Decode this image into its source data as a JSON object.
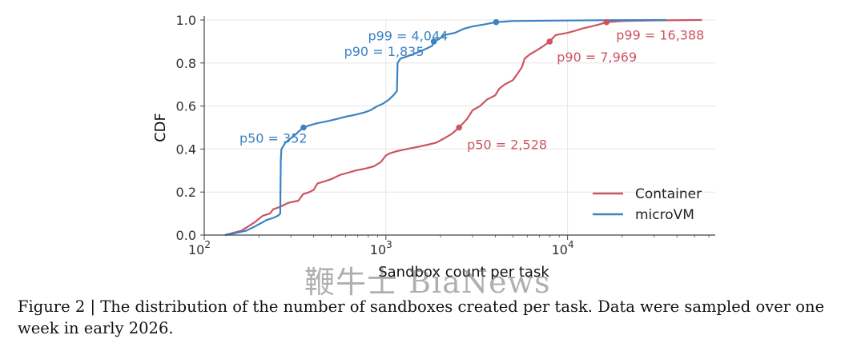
{
  "chart_data": {
    "type": "line",
    "xscale": "log",
    "xlabel": "Sandbox count per task",
    "ylabel": "CDF",
    "xlim": [
      100,
      65000
    ],
    "ylim": [
      0,
      1.0
    ],
    "xticks": [
      {
        "value": 100,
        "base": "10",
        "exp": "2"
      },
      {
        "value": 1000,
        "base": "10",
        "exp": "3"
      },
      {
        "value": 10000,
        "base": "10",
        "exp": "4"
      }
    ],
    "yticks": [
      "0.0",
      "0.2",
      "0.4",
      "0.6",
      "0.8",
      "1.0"
    ],
    "grid": true,
    "legend_position": "lower-right",
    "series": [
      {
        "name": "Container",
        "color": "#cc5561",
        "points": [
          [
            130,
            0
          ],
          [
            160,
            0.02
          ],
          [
            190,
            0.06
          ],
          [
            210,
            0.09
          ],
          [
            230,
            0.1
          ],
          [
            240,
            0.12
          ],
          [
            260,
            0.13
          ],
          [
            290,
            0.15
          ],
          [
            330,
            0.16
          ],
          [
            350,
            0.19
          ],
          [
            380,
            0.2
          ],
          [
            400,
            0.21
          ],
          [
            420,
            0.24
          ],
          [
            460,
            0.25
          ],
          [
            500,
            0.26
          ],
          [
            560,
            0.28
          ],
          [
            620,
            0.29
          ],
          [
            680,
            0.3
          ],
          [
            780,
            0.31
          ],
          [
            860,
            0.32
          ],
          [
            940,
            0.34
          ],
          [
            1000,
            0.37
          ],
          [
            1050,
            0.38
          ],
          [
            1150,
            0.39
          ],
          [
            1300,
            0.4
          ],
          [
            1500,
            0.41
          ],
          [
            1700,
            0.42
          ],
          [
            1900,
            0.43
          ],
          [
            2100,
            0.45
          ],
          [
            2300,
            0.47
          ],
          [
            2528,
            0.5
          ],
          [
            2800,
            0.54
          ],
          [
            3000,
            0.58
          ],
          [
            3300,
            0.6
          ],
          [
            3600,
            0.63
          ],
          [
            4000,
            0.65
          ],
          [
            4200,
            0.68
          ],
          [
            4500,
            0.7
          ],
          [
            5000,
            0.72
          ],
          [
            5300,
            0.75
          ],
          [
            5600,
            0.78
          ],
          [
            5800,
            0.82
          ],
          [
            6200,
            0.84
          ],
          [
            6800,
            0.86
          ],
          [
            7400,
            0.88
          ],
          [
            7969,
            0.9
          ],
          [
            8600,
            0.93
          ],
          [
            10000,
            0.94
          ],
          [
            11000,
            0.95
          ],
          [
            12000,
            0.96
          ],
          [
            13500,
            0.97
          ],
          [
            15000,
            0.98
          ],
          [
            16388,
            0.99
          ],
          [
            20000,
            0.995
          ],
          [
            30000,
            0.998
          ],
          [
            55000,
            1.0
          ]
        ]
      },
      {
        "name": "microVM",
        "color": "#3b82c4",
        "points": [
          [
            130,
            0
          ],
          [
            150,
            0.01
          ],
          [
            170,
            0.02
          ],
          [
            190,
            0.04
          ],
          [
            210,
            0.06
          ],
          [
            220,
            0.07
          ],
          [
            240,
            0.08
          ],
          [
            255,
            0.09
          ],
          [
            262,
            0.1
          ],
          [
            264,
            0.35
          ],
          [
            266,
            0.4
          ],
          [
            280,
            0.43
          ],
          [
            300,
            0.45
          ],
          [
            320,
            0.47
          ],
          [
            340,
            0.49
          ],
          [
            352,
            0.5
          ],
          [
            380,
            0.51
          ],
          [
            420,
            0.52
          ],
          [
            480,
            0.53
          ],
          [
            540,
            0.54
          ],
          [
            600,
            0.55
          ],
          [
            680,
            0.56
          ],
          [
            760,
            0.57
          ],
          [
            820,
            0.58
          ],
          [
            900,
            0.6
          ],
          [
            960,
            0.61
          ],
          [
            1040,
            0.63
          ],
          [
            1100,
            0.65
          ],
          [
            1150,
            0.67
          ],
          [
            1160,
            0.8
          ],
          [
            1200,
            0.82
          ],
          [
            1300,
            0.83
          ],
          [
            1400,
            0.84
          ],
          [
            1500,
            0.85
          ],
          [
            1600,
            0.86
          ],
          [
            1700,
            0.87
          ],
          [
            1800,
            0.88
          ],
          [
            1835,
            0.9
          ],
          [
            1950,
            0.91
          ],
          [
            2100,
            0.93
          ],
          [
            2400,
            0.94
          ],
          [
            2700,
            0.96
          ],
          [
            3000,
            0.97
          ],
          [
            3500,
            0.98
          ],
          [
            4044,
            0.99
          ],
          [
            5000,
            0.995
          ],
          [
            8000,
            0.997
          ],
          [
            15000,
            0.999
          ],
          [
            35000,
            1.0
          ]
        ]
      }
    ],
    "annotations": [
      {
        "series": "microVM",
        "label": "p50 = 352",
        "x": 352,
        "y": 0.5
      },
      {
        "series": "microVM",
        "label": "p90 = 1,835",
        "x": 1835,
        "y": 0.9
      },
      {
        "series": "microVM",
        "label": "p99 = 4,044",
        "x": 4044,
        "y": 0.99
      },
      {
        "series": "Container",
        "label": "p50 = 2,528",
        "x": 2528,
        "y": 0.5
      },
      {
        "series": "Container",
        "label": "p90 = 7,969",
        "x": 7969,
        "y": 0.9
      },
      {
        "series": "Container",
        "label": "p99 = 16,388",
        "x": 16388,
        "y": 0.99
      }
    ]
  },
  "watermark": "鞭牛士 BiaNews",
  "caption": "Figure 2 | The distribution of the number of sandboxes created per task. Data were sampled over one week in early 2026."
}
